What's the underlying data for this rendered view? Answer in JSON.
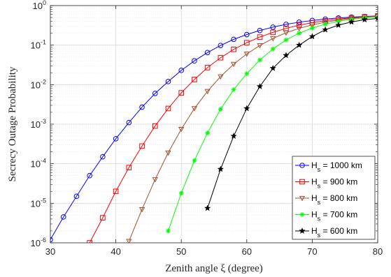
{
  "chart_data": {
    "type": "line",
    "title": "",
    "xlabel": "Zenith angle ξ (degree)",
    "ylabel": "Secrecy Outage Probability",
    "xlim": [
      30,
      80
    ],
    "ylim": [
      1e-06,
      1
    ],
    "yscale": "log",
    "grid": true,
    "legend_position": "bottom-right",
    "x_ticks": [
      30,
      40,
      50,
      60,
      70,
      80
    ],
    "y_ticks": [
      {
        "base": "10",
        "exp": "-6",
        "value": 1e-06
      },
      {
        "base": "10",
        "exp": "-5",
        "value": 1e-05
      },
      {
        "base": "10",
        "exp": "-4",
        "value": 0.0001
      },
      {
        "base": "10",
        "exp": "-3",
        "value": 0.001
      },
      {
        "base": "10",
        "exp": "-2",
        "value": 0.01
      },
      {
        "base": "10",
        "exp": "-1",
        "value": 0.1
      },
      {
        "base": "10",
        "exp": "0",
        "value": 1
      }
    ],
    "series": [
      {
        "name": "H_s = 1000 km",
        "label_main": "H",
        "label_sub": "s",
        "label_rest": " = 1000 km",
        "color": "#0000ff",
        "marker": "circle",
        "points": [
          [
            30,
            1.2e-06
          ],
          [
            32,
            4.5e-06
          ],
          [
            34,
            1.5e-05
          ],
          [
            36,
            5e-05
          ],
          [
            38,
            0.00015
          ],
          [
            40,
            0.00043
          ],
          [
            42,
            0.0011
          ],
          [
            44,
            0.0027
          ],
          [
            46,
            0.006
          ],
          [
            48,
            0.012
          ],
          [
            50,
            0.023
          ],
          [
            52,
            0.04
          ],
          [
            54,
            0.065
          ],
          [
            56,
            0.098
          ],
          [
            58,
            0.14
          ],
          [
            60,
            0.185
          ],
          [
            62,
            0.235
          ],
          [
            64,
            0.285
          ],
          [
            66,
            0.335
          ],
          [
            68,
            0.38
          ],
          [
            70,
            0.42
          ],
          [
            72,
            0.455
          ],
          [
            74,
            0.485
          ],
          [
            76,
            0.51
          ],
          [
            78,
            0.53
          ],
          [
            80,
            0.55
          ]
        ]
      },
      {
        "name": "H_s = 900 km",
        "label_main": "H",
        "label_sub": "s",
        "label_rest": " = 900 km",
        "color": "#ff0000",
        "marker": "square",
        "points": [
          [
            36,
            1e-06
          ],
          [
            38,
            4.3e-06
          ],
          [
            40,
            2e-05
          ],
          [
            42,
            8e-05
          ],
          [
            44,
            0.00028
          ],
          [
            46,
            0.0009
          ],
          [
            48,
            0.0025
          ],
          [
            50,
            0.0062
          ],
          [
            52,
            0.0135
          ],
          [
            54,
            0.027
          ],
          [
            56,
            0.048
          ],
          [
            58,
            0.078
          ],
          [
            60,
            0.115
          ],
          [
            62,
            0.16
          ],
          [
            64,
            0.21
          ],
          [
            66,
            0.265
          ],
          [
            68,
            0.32
          ],
          [
            70,
            0.37
          ],
          [
            72,
            0.415
          ],
          [
            74,
            0.455
          ],
          [
            76,
            0.49
          ],
          [
            78,
            0.52
          ],
          [
            80,
            0.545
          ]
        ]
      },
      {
        "name": "H_s = 800 km",
        "label_main": "H",
        "label_sub": "s",
        "label_rest": " = 800 km",
        "color": "#a0522d",
        "marker": "triangle-down",
        "points": [
          [
            42,
            1.1e-06
          ],
          [
            44,
            7e-06
          ],
          [
            46,
            4e-05
          ],
          [
            48,
            0.00019
          ],
          [
            50,
            0.00075
          ],
          [
            52,
            0.0025
          ],
          [
            54,
            0.0068
          ],
          [
            56,
            0.016
          ],
          [
            58,
            0.033
          ],
          [
            60,
            0.06
          ],
          [
            62,
            0.098
          ],
          [
            64,
            0.148
          ],
          [
            66,
            0.205
          ],
          [
            68,
            0.265
          ],
          [
            70,
            0.325
          ],
          [
            72,
            0.38
          ],
          [
            74,
            0.43
          ],
          [
            76,
            0.475
          ],
          [
            78,
            0.51
          ],
          [
            80,
            0.54
          ]
        ]
      },
      {
        "name": "H_s = 700 km",
        "label_main": "H",
        "label_sub": "s",
        "label_rest": " = 700 km",
        "color": "#00ff00",
        "marker": "asterisk",
        "points": [
          [
            48,
            2e-06
          ],
          [
            50,
            1.8e-05
          ],
          [
            52,
            0.00012
          ],
          [
            54,
            0.0006
          ],
          [
            56,
            0.0024
          ],
          [
            58,
            0.0075
          ],
          [
            60,
            0.019
          ],
          [
            62,
            0.042
          ],
          [
            64,
            0.08
          ],
          [
            66,
            0.135
          ],
          [
            68,
            0.2
          ],
          [
            70,
            0.27
          ],
          [
            72,
            0.34
          ],
          [
            74,
            0.4
          ],
          [
            76,
            0.45
          ],
          [
            78,
            0.49
          ],
          [
            80,
            0.52
          ]
        ]
      },
      {
        "name": "H_s = 600 km",
        "label_main": "H",
        "label_sub": "s",
        "label_rest": " = 600 km",
        "color": "#000000",
        "marker": "star",
        "points": [
          [
            54,
            7.5e-06
          ],
          [
            56,
            7.3e-05
          ],
          [
            58,
            0.0005
          ],
          [
            60,
            0.0025
          ],
          [
            62,
            0.009
          ],
          [
            64,
            0.026
          ],
          [
            66,
            0.055
          ],
          [
            68,
            0.1
          ],
          [
            70,
            0.165
          ],
          [
            72,
            0.245
          ],
          [
            74,
            0.32
          ],
          [
            76,
            0.385
          ],
          [
            78,
            0.44
          ],
          [
            80,
            0.475
          ]
        ]
      }
    ]
  }
}
